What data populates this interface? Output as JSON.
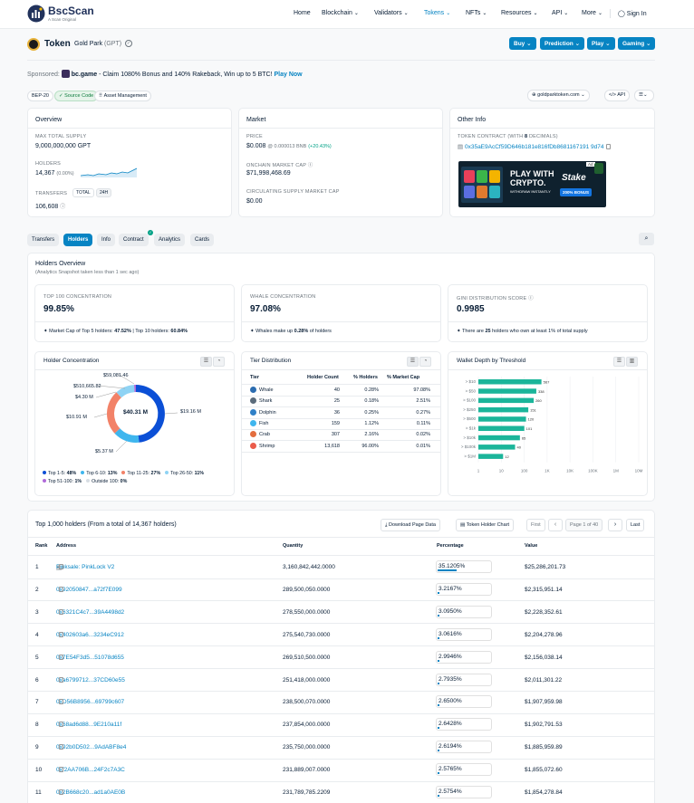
{
  "header": {
    "logo_name": "BscScan",
    "logo_sub": "A Scan Original",
    "nav": [
      {
        "label": "Home",
        "chevron": false,
        "active": false
      },
      {
        "label": "Blockchain",
        "chevron": true,
        "active": false
      },
      {
        "label": "Validators",
        "chevron": true,
        "active": false
      },
      {
        "label": "Tokens",
        "chevron": true,
        "active": true
      },
      {
        "label": "NFTs",
        "chevron": true,
        "active": false
      },
      {
        "label": "Resources",
        "chevron": true,
        "active": false
      },
      {
        "label": "API",
        "chevron": true,
        "active": false
      },
      {
        "label": "More",
        "chevron": true,
        "active": false
      }
    ],
    "sign_in": "Sign In"
  },
  "token": {
    "label": "Token",
    "name": "Gold Park",
    "symbol": "(GPT)",
    "buttons": [
      "Buy",
      "Prediction",
      "Play",
      "Gaming"
    ]
  },
  "sponsored": {
    "prefix": "Sponsored:",
    "brand": "bc.game",
    "text": "- Claim 1080% Bonus and 140% Rakeback, Win up to 5 BTC!",
    "link": "Play Now"
  },
  "badges": [
    "BEP-20",
    "Source Code",
    "Asset Management"
  ],
  "links": {
    "site": "goldparktoken.com",
    "api": "API"
  },
  "overview": {
    "title": "Overview",
    "max_supply_label": "MAX TOTAL SUPPLY",
    "max_supply": "9,000,000,000 GPT",
    "holders_label": "HOLDERS",
    "holders": "14,367",
    "holders_delta": "(0.00%)",
    "transfers_label": "TRANSFERS",
    "transfers_total": "TOTAL",
    "transfers_24h": "24H",
    "transfers": "106,608"
  },
  "market": {
    "title": "Market",
    "price_label": "PRICE",
    "price": "$0.008",
    "price_bnb": "@ 0.000013 BNB",
    "price_change": "(+20.43%)",
    "mcap_label": "ONCHAIN MARKET CAP",
    "mcap": "$71,998,468.69",
    "circ_label": "CIRCULATING SUPPLY MARKET CAP",
    "circ": "$0.00"
  },
  "other": {
    "title": "Other Info",
    "contract_label": "TOKEN CONTRACT (WITH",
    "decimals": "8",
    "contract_label_end": "DECIMALS)",
    "contract": "0x35aE9AcCf59D646b181e816fDb8681167191 9d74",
    "ad": {
      "badge": "Ad",
      "line1": "PLAY WITH",
      "line2": "CRYPTO.",
      "line3": "WITHDRAW INSTANTLY",
      "brand": "Stake",
      "bonus": "200% BONUS"
    }
  },
  "tabs": [
    "Transfers",
    "Holders",
    "Info",
    "Contract",
    "Analytics",
    "Cards"
  ],
  "holders_overview": {
    "title": "Holders Overview",
    "subtitle": "(Analytics Snapshot taken less than 1 sec ago)",
    "top100_label": "TOP 100 CONCENTRATION",
    "top100": "99.85%",
    "top100_note_a": "Market Cap of Top 5 holders:",
    "top5": "47.52%",
    "top100_note_b": "| Top 10 holders:",
    "top10": "60.84%",
    "whale_label": "WHALE CONCENTRATION",
    "whale": "97.08%",
    "whale_note_a": "Whales make up",
    "whale_share": "0.28%",
    "whale_note_b": "of holders",
    "gini_label": "GINI DISTRIBUTION SCORE",
    "gini": "0.9985",
    "gini_note_a": "There are",
    "gini_count": "25",
    "gini_note_b": "holders who own at least 1% of total supply"
  },
  "concentration": {
    "title": "Holder Concentration",
    "center": "$40.31 M",
    "labels": [
      "$59,081.46",
      "$510,665.82",
      "$4.30 M",
      "$10.91 M",
      "$19.16 M",
      "$5.37 M"
    ],
    "legend": [
      {
        "name": "Top 1-5:",
        "pct": "48%",
        "color": "#0b4fd6"
      },
      {
        "name": "Top 6-10:",
        "pct": "13%",
        "color": "#3fb6ee"
      },
      {
        "name": "Top 11-25:",
        "pct": "27%",
        "color": "#f28268"
      },
      {
        "name": "Top 26-50:",
        "pct": "11%",
        "color": "#8fd3f4"
      },
      {
        "name": "Top 51-100:",
        "pct": "1%",
        "color": "#b06ad9"
      },
      {
        "name": "Outside 100:",
        "pct": "0%",
        "color": "#d7dde3"
      }
    ]
  },
  "tier": {
    "title": "Tier Distribution",
    "headers": [
      "Tier",
      "Holder Count",
      "% Holders",
      "% Market Cap"
    ],
    "rows": [
      {
        "tier": "Whale",
        "count": "40",
        "holders": "0.28%",
        "mcap": "97.08%",
        "color": "#2b6cb0"
      },
      {
        "tier": "Shark",
        "count": "25",
        "holders": "0.18%",
        "mcap": "2.51%",
        "color": "#5a6b7b"
      },
      {
        "tier": "Dolphin",
        "count": "36",
        "holders": "0.25%",
        "mcap": "0.27%",
        "color": "#2f80c7"
      },
      {
        "tier": "Fish",
        "count": "159",
        "holders": "1.12%",
        "mcap": "0.11%",
        "color": "#3fb6ee"
      },
      {
        "tier": "Crab",
        "count": "307",
        "holders": "2.16%",
        "mcap": "0.02%",
        "color": "#e36d3e"
      },
      {
        "tier": "Shrimp",
        "count": "13,618",
        "holders": "96.00%",
        "mcap": "0.01%",
        "color": "#ea5b4a"
      }
    ]
  },
  "wallet_depth": {
    "title": "Wallet Depth by Threshold",
    "chart_data": {
      "type": "bar",
      "orientation": "horizontal",
      "categories": [
        "> $10",
        "> $50",
        "> $100",
        "> $250",
        "> $500",
        "> $1k",
        "> $10k",
        "> $100k",
        "> $1M"
      ],
      "values": [
        567,
        338,
        260,
        151,
        120,
        101,
        65,
        40,
        12
      ],
      "value_labels": [
        "567",
        "338",
        "260",
        "151",
        "120",
        "101",
        "65",
        "40",
        "12"
      ],
      "x_ticks": [
        "1",
        "10",
        "100",
        "1K",
        "10K",
        "100K",
        "1M",
        "10M"
      ],
      "xscale": "log",
      "xlim": [
        1,
        10000000
      ]
    }
  },
  "holders_table": {
    "title": "Top 1,000 holders (From a total of 14,367 holders)",
    "download": "Download Page Data",
    "chart_btn": "Token Holder Chart",
    "first": "First",
    "page": "Page 1 of 40",
    "last": "Last",
    "headers": [
      "Rank",
      "Address",
      "Quantity",
      "Percentage",
      "Value"
    ],
    "rows": [
      {
        "rank": "1",
        "address": "Pinksale: PinkLock V2",
        "quantity": "3,160,842,442.0000",
        "pct": "35.1205%",
        "pct_num": 35.1205,
        "value": "$25,286,201.73"
      },
      {
        "rank": "2",
        "address": "0x92050847...a72f7E099",
        "quantity": "289,500,050.0000",
        "pct": "3.2167%",
        "pct_num": 3.2167,
        "value": "$2,315,951.14"
      },
      {
        "rank": "3",
        "address": "0x6321C4c7...39A4498d2",
        "quantity": "278,550,000.0000",
        "pct": "3.0950%",
        "pct_num": 3.095,
        "value": "$2,228,352.61"
      },
      {
        "rank": "4",
        "address": "0x402603a6...3234eC912",
        "quantity": "275,540,730.0000",
        "pct": "3.0616%",
        "pct_num": 3.0616,
        "value": "$2,204,278.96"
      },
      {
        "rank": "5",
        "address": "0x7E54F3d5...51078d655",
        "quantity": "269,510,500.0000",
        "pct": "2.9946%",
        "pct_num": 2.9946,
        "value": "$2,156,038.14"
      },
      {
        "rank": "6",
        "address": "0xa6799712...37CD60e55",
        "quantity": "251,418,000.0000",
        "pct": "2.7935%",
        "pct_num": 2.7935,
        "value": "$2,011,301.22"
      },
      {
        "rank": "7",
        "address": "0xD56B8956...69799c607",
        "quantity": "238,500,070.0000",
        "pct": "2.6500%",
        "pct_num": 2.65,
        "value": "$1,907,959.98"
      },
      {
        "rank": "8",
        "address": "0x68ad6d88...9E210a11f",
        "quantity": "237,854,000.0000",
        "pct": "2.6428%",
        "pct_num": 2.6428,
        "value": "$1,902,791.53"
      },
      {
        "rank": "9",
        "address": "0x92b0D502...9AdABF8e4",
        "quantity": "235,750,000.0000",
        "pct": "2.6194%",
        "pct_num": 2.6194,
        "value": "$1,885,959.89"
      },
      {
        "rank": "10",
        "address": "0xf2AA706B...24F2c7A3C",
        "quantity": "231,889,007.0000",
        "pct": "2.5765%",
        "pct_num": 2.5765,
        "value": "$1,855,072.60"
      },
      {
        "rank": "11",
        "address": "0x2B668c20...ad1a0AE0B",
        "quantity": "231,789,785.2209",
        "pct": "2.5754%",
        "pct_num": 2.5754,
        "value": "$1,854,278.84"
      }
    ]
  }
}
